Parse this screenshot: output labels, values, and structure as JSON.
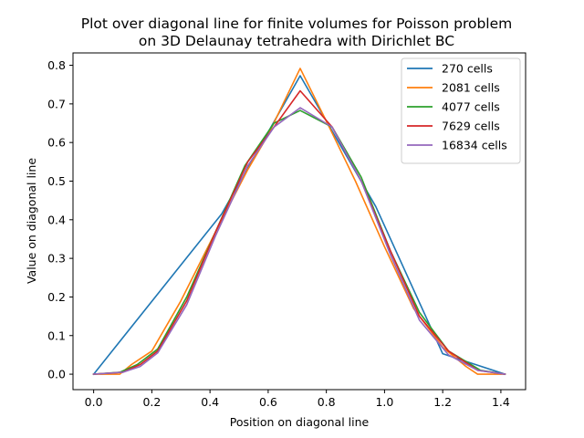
{
  "chart_data": {
    "type": "line",
    "title": "Plot over diagonal line for finite volumes for Poisson problem",
    "subtitle": "on 3D Delaunay tetrahedra with Dirichlet BC",
    "xlabel": "Position on diagonal line",
    "ylabel": "Value on diagonal line",
    "xlim": [
      -0.071,
      1.485
    ],
    "ylim": [
      -0.04,
      0.832
    ],
    "xticks": [
      "0.0",
      "0.2",
      "0.4",
      "0.6",
      "0.8",
      "1.0",
      "1.2",
      "1.4"
    ],
    "yticks": [
      "0.0",
      "0.1",
      "0.2",
      "0.3",
      "0.4",
      "0.5",
      "0.6",
      "0.7",
      "0.8"
    ],
    "xtick_values": [
      0.0,
      0.2,
      0.4,
      0.6,
      0.8,
      1.0,
      1.2,
      1.4
    ],
    "ytick_values": [
      0.0,
      0.1,
      0.2,
      0.3,
      0.4,
      0.5,
      0.6,
      0.7,
      0.8
    ],
    "grid": false,
    "legend_position": "top-right",
    "series": [
      {
        "name": "270 cells",
        "color": "#1f77b4",
        "x": [
          0.0,
          0.44,
          0.71,
          0.97,
          1.2,
          1.414
        ],
        "y": [
          0.0,
          0.415,
          0.773,
          0.434,
          0.053,
          0.0
        ]
      },
      {
        "name": "2081 cells",
        "color": "#ff7f0e",
        "x": [
          0.0,
          0.09,
          0.13,
          0.2,
          0.3,
          0.42,
          0.53,
          0.6,
          0.71,
          0.81,
          0.9,
          1.0,
          1.1,
          1.2,
          1.28,
          1.32,
          1.414
        ],
        "y": [
          0.0,
          0.0,
          0.025,
          0.06,
          0.19,
          0.37,
          0.53,
          0.62,
          0.792,
          0.64,
          0.5,
          0.33,
          0.17,
          0.07,
          0.02,
          0.0,
          0.0
        ]
      },
      {
        "name": "4077 cells",
        "color": "#2ca02c",
        "x": [
          0.0,
          0.09,
          0.15,
          0.22,
          0.32,
          0.42,
          0.52,
          0.62,
          0.71,
          0.82,
          0.92,
          1.02,
          1.12,
          1.22,
          1.33,
          1.414
        ],
        "y": [
          0.0,
          0.005,
          0.025,
          0.065,
          0.2,
          0.37,
          0.54,
          0.65,
          0.683,
          0.64,
          0.51,
          0.32,
          0.16,
          0.06,
          0.01,
          0.0
        ]
      },
      {
        "name": "7629 cells",
        "color": "#d62728",
        "x": [
          0.0,
          0.1,
          0.16,
          0.22,
          0.32,
          0.42,
          0.53,
          0.62,
          0.71,
          0.82,
          0.92,
          1.02,
          1.12,
          1.22,
          1.32,
          1.414
        ],
        "y": [
          0.0,
          0.005,
          0.025,
          0.06,
          0.19,
          0.37,
          0.55,
          0.64,
          0.734,
          0.64,
          0.5,
          0.32,
          0.15,
          0.06,
          0.01,
          0.0
        ]
      },
      {
        "name": "16834 cells",
        "color": "#9467bd",
        "x": [
          0.0,
          0.1,
          0.16,
          0.22,
          0.32,
          0.42,
          0.53,
          0.62,
          0.71,
          0.82,
          0.92,
          1.02,
          1.12,
          1.22,
          1.32,
          1.414
        ],
        "y": [
          0.0,
          0.005,
          0.02,
          0.055,
          0.18,
          0.36,
          0.54,
          0.64,
          0.69,
          0.64,
          0.5,
          0.31,
          0.14,
          0.05,
          0.01,
          0.0
        ]
      }
    ]
  }
}
